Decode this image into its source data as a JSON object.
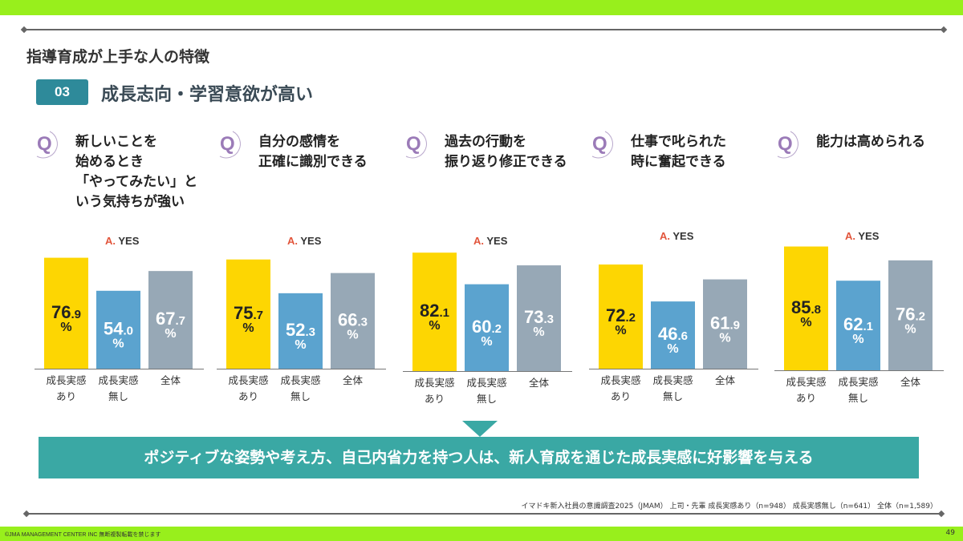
{
  "header": {
    "section_title": "指導育成が上手な人の特徴",
    "badge_number": "03",
    "subtitle": "成長志向・学習意欲が高い"
  },
  "colors": {
    "top_bar": "#98ef1c",
    "badge": "#2e8a9a",
    "q_icon": "#9b7bb8",
    "bar_yes": "#fdd602",
    "bar_no": "#5ba3cf",
    "bar_all": "#97a8b6",
    "conclusion_bg": "#3aa8a4",
    "answer_a": "#e2553b"
  },
  "q_icon_label": "Q",
  "answer_prefix": "A.",
  "answer_text": "YES",
  "percent_sign": "%",
  "chart_data": [
    {
      "type": "bar",
      "title": [
        "新しいことを",
        "始めるとき",
        "「やってみたい」と",
        "いう気持ちが強い"
      ],
      "answer": "A. YES",
      "categories": [
        [
          "成長実感",
          "あり"
        ],
        [
          "成長実感",
          "無し"
        ],
        [
          "全体",
          ""
        ]
      ],
      "values": [
        76.9,
        54.0,
        67.7
      ],
      "value_labels": [
        [
          "76",
          ".9"
        ],
        [
          "54",
          ".0"
        ],
        [
          "67",
          ".7"
        ]
      ],
      "unit": "%"
    },
    {
      "type": "bar",
      "title": [
        "自分の感情を",
        "正確に識別できる"
      ],
      "answer": "A. YES",
      "categories": [
        [
          "成長実感",
          "あり"
        ],
        [
          "成長実感",
          "無し"
        ],
        [
          "全体",
          ""
        ]
      ],
      "values": [
        75.7,
        52.3,
        66.3
      ],
      "value_labels": [
        [
          "75",
          ".7"
        ],
        [
          "52",
          ".3"
        ],
        [
          "66",
          ".3"
        ]
      ],
      "unit": "%"
    },
    {
      "type": "bar",
      "title": [
        "過去の行動を",
        "振り返り修正できる"
      ],
      "answer": "A. YES",
      "categories": [
        [
          "成長実感",
          "あり"
        ],
        [
          "成長実感",
          "無し"
        ],
        [
          "全体",
          ""
        ]
      ],
      "values": [
        82.1,
        60.2,
        73.3
      ],
      "value_labels": [
        [
          "82",
          ".1"
        ],
        [
          "60",
          ".2"
        ],
        [
          "73",
          ".3"
        ]
      ],
      "unit": "%"
    },
    {
      "type": "bar",
      "title": [
        "仕事で叱られた",
        "時に奮起できる"
      ],
      "answer": "A. YES",
      "categories": [
        [
          "成長実感",
          "あり"
        ],
        [
          "成長実感",
          "無し"
        ],
        [
          "全体",
          ""
        ]
      ],
      "values": [
        72.2,
        46.6,
        61.9
      ],
      "value_labels": [
        [
          "72",
          ".2"
        ],
        [
          "46",
          ".6"
        ],
        [
          "61",
          ".9"
        ]
      ],
      "unit": "%"
    },
    {
      "type": "bar",
      "title": [
        "能力は高められる"
      ],
      "answer": "A. YES",
      "categories": [
        [
          "成長実感",
          "あり"
        ],
        [
          "成長実感",
          "無し"
        ],
        [
          "全体",
          ""
        ]
      ],
      "values": [
        85.8,
        62.1,
        76.2
      ],
      "value_labels": [
        [
          "85",
          ".8"
        ],
        [
          "62",
          ".1"
        ],
        [
          "76",
          ".2"
        ]
      ],
      "unit": "%"
    }
  ],
  "conclusion": "ポジティブな姿勢や考え方、自己内省力を持つ人は、新人育成を通じた成長実感に好影響を与える",
  "footer": {
    "source": "イマドキ新入社員の意識調査2025（JMAM） 上司・先輩 成長実感あり（n=948） 成長実感無し（n=641） 全体（n=1,589）",
    "copyright": "©JMA MANAGEMENT CENTER INC 無断複製転載を禁じます",
    "page_number": "49"
  }
}
